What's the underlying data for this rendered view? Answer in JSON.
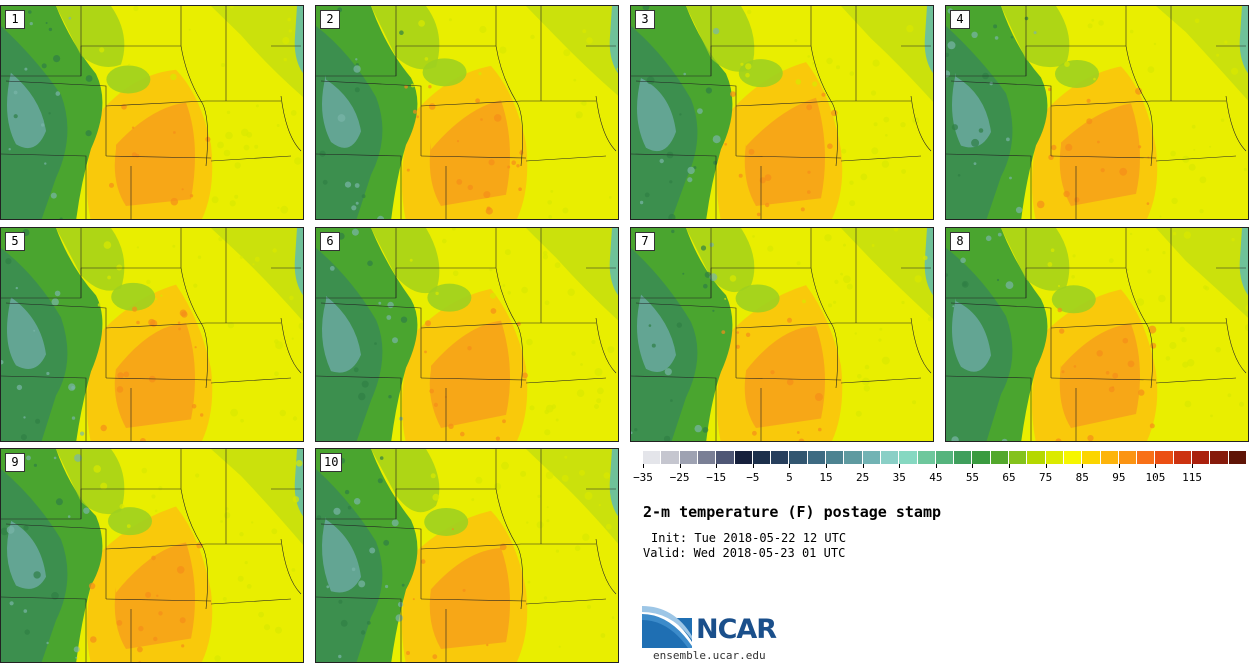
{
  "stamps": [
    {
      "label": "1"
    },
    {
      "label": "2"
    },
    {
      "label": "3"
    },
    {
      "label": "4"
    },
    {
      "label": "5"
    },
    {
      "label": "6"
    },
    {
      "label": "7"
    },
    {
      "label": "8"
    },
    {
      "label": "9"
    },
    {
      "label": "10"
    }
  ],
  "colorbar": {
    "colors": [
      "#e4e5ea",
      "#c5c6cf",
      "#9ea2b2",
      "#7a7f95",
      "#4f5775",
      "#16203b",
      "#1c2f4b",
      "#273f5d",
      "#325670",
      "#3e6b82",
      "#4d8391",
      "#5f9aa0",
      "#72b3b4",
      "#8acfc6",
      "#86d8c1",
      "#6ec79c",
      "#55b47d",
      "#3f9f5c",
      "#3a9b40",
      "#53a82c",
      "#84c21c",
      "#b5d800",
      "#dbea00",
      "#f6f600",
      "#fbd500",
      "#fdb40b",
      "#fb9413",
      "#f87018",
      "#eb4f13",
      "#cc3210",
      "#aa200d",
      "#861a0b",
      "#5f1406"
    ],
    "ticks": [
      "−35",
      "−25",
      "−15",
      "−5",
      "5",
      "15",
      "25",
      "35",
      "45",
      "55",
      "65",
      "75",
      "85",
      "95",
      "105",
      "115"
    ],
    "min": -35,
    "step": 5
  },
  "title": "2-m temperature (F) postage stamp",
  "init": "Init: Tue 2018-05-22 12 UTC",
  "valid": "Valid: Wed 2018-05-23 01 UTC",
  "logo": {
    "name": "NCAR",
    "url": "ensemble.ucar.edu"
  }
}
